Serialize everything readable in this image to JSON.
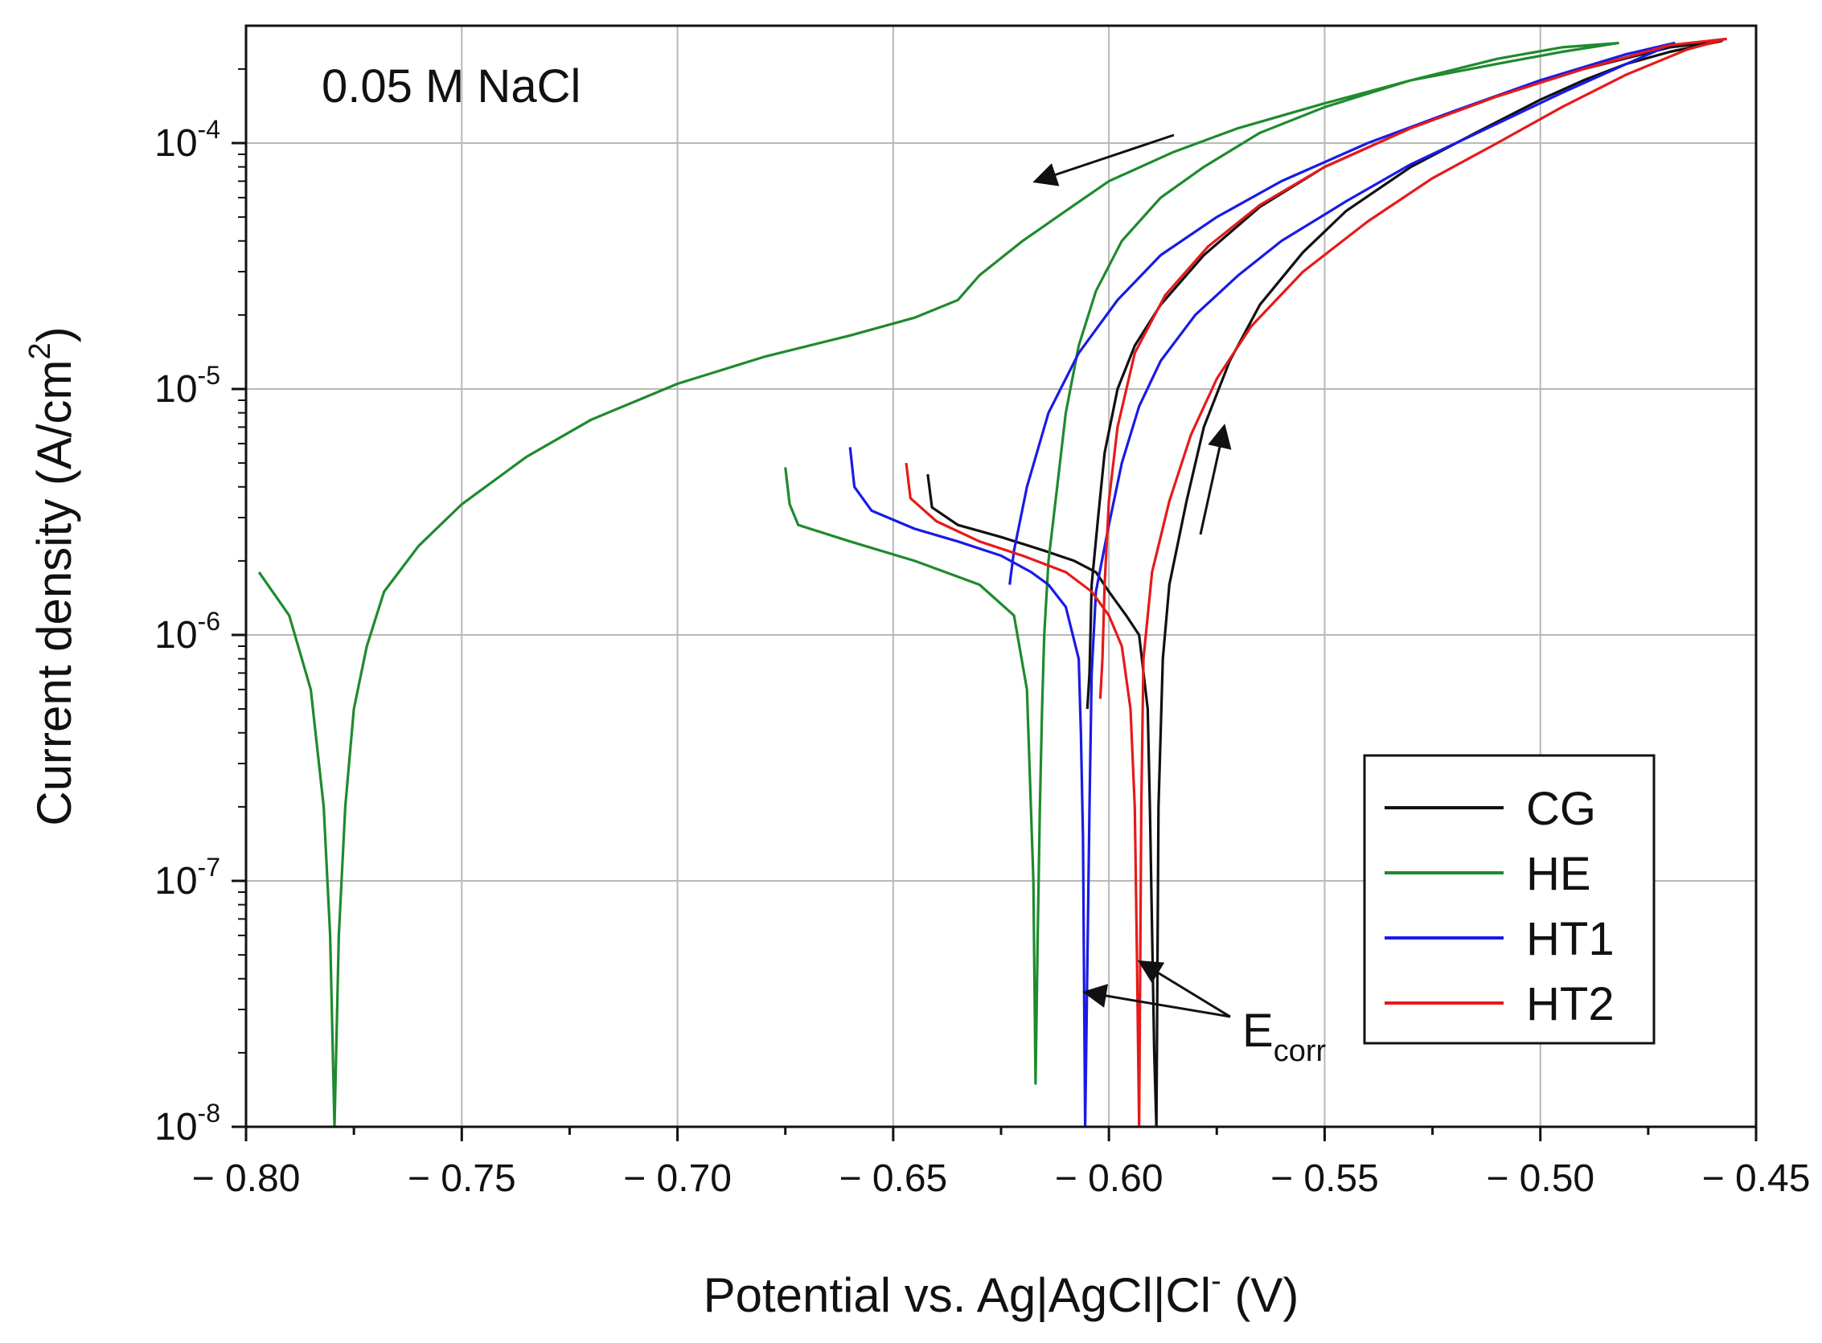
{
  "chart_data": {
    "type": "line",
    "title": "",
    "annotation": "0.05 M NaCl",
    "xlabel": "Potential vs. Ag|AgCl|Cl⁻ (V)",
    "xlabel_main": "Potential vs. Ag|AgCl|Cl",
    "xlabel_sup": "-",
    "xlabel_end": " (V)",
    "ylabel": "Current density (A/cm²)",
    "ylabel_main": "Current density (A/cm",
    "ylabel_sup": "2",
    "ylabel_end": ")",
    "xlim": [
      -0.8,
      -0.45
    ],
    "ylim": [
      1e-08,
      0.0003
    ],
    "yscale": "log",
    "grid": true,
    "legend_position": "bottom-right",
    "xticks": [
      -0.8,
      -0.75,
      -0.7,
      -0.65,
      -0.6,
      -0.55,
      -0.5,
      -0.45
    ],
    "xtick_labels": [
      "− 0.80",
      "− 0.75",
      "− 0.70",
      "− 0.65",
      "− 0.60",
      "− 0.55",
      "− 0.50",
      "− 0.45"
    ],
    "yticks": [
      {
        "value": 0.0001,
        "base": "10",
        "exp": "-4"
      },
      {
        "value": 1e-05,
        "base": "10",
        "exp": "-5"
      },
      {
        "value": 1e-06,
        "base": "10",
        "exp": "-6"
      },
      {
        "value": 1e-07,
        "base": "10",
        "exp": "-7"
      },
      {
        "value": 1e-08,
        "base": "10",
        "exp": "-8"
      }
    ],
    "ecorr_label": {
      "main": "E",
      "sub": "corr"
    },
    "series": [
      {
        "name": "CG",
        "color": "#111111",
        "points": [
          [
            -0.642,
            4.5e-06
          ],
          [
            -0.641,
            3.3e-06
          ],
          [
            -0.635,
            2.8e-06
          ],
          [
            -0.625,
            2.5e-06
          ],
          [
            -0.615,
            2.2e-06
          ],
          [
            -0.608,
            2e-06
          ],
          [
            -0.603,
            1.8e-06
          ],
          [
            -0.6,
            1.5e-06
          ],
          [
            -0.596,
            1.2e-06
          ],
          [
            -0.593,
            1e-06
          ],
          [
            -0.591,
            5e-07
          ],
          [
            -0.5905,
            2e-07
          ],
          [
            -0.5895,
            2e-08
          ],
          [
            -0.589,
            1e-08
          ],
          [
            -0.5885,
            2e-07
          ],
          [
            -0.5875,
            8e-07
          ],
          [
            -0.586,
            1.6e-06
          ],
          [
            -0.582,
            3.5e-06
          ],
          [
            -0.578,
            7e-06
          ],
          [
            -0.572,
            1.3e-05
          ],
          [
            -0.565,
            2.2e-05
          ],
          [
            -0.555,
            3.6e-05
          ],
          [
            -0.545,
            5.3e-05
          ],
          [
            -0.53,
            8e-05
          ],
          [
            -0.515,
            0.00011
          ],
          [
            -0.5,
            0.00015
          ],
          [
            -0.49,
            0.00018
          ],
          [
            -0.48,
            0.00021
          ],
          [
            -0.47,
            0.000235
          ],
          [
            -0.458,
            0.00026
          ],
          [
            -0.47,
            0.000245
          ],
          [
            -0.49,
            0.0002
          ],
          [
            -0.51,
            0.000155
          ],
          [
            -0.53,
            0.000115
          ],
          [
            -0.55,
            8e-05
          ],
          [
            -0.565,
            5.5e-05
          ],
          [
            -0.578,
            3.5e-05
          ],
          [
            -0.588,
            2.2e-05
          ],
          [
            -0.594,
            1.5e-05
          ],
          [
            -0.598,
            1e-05
          ],
          [
            -0.601,
            5.5e-06
          ],
          [
            -0.6025,
            3e-06
          ],
          [
            -0.604,
            1.6e-06
          ],
          [
            -0.6045,
            7e-07
          ],
          [
            -0.605,
            5e-07
          ]
        ]
      },
      {
        "name": "HE",
        "color": "#1f8a2e",
        "points": [
          [
            -0.797,
            1.8e-06
          ],
          [
            -0.79,
            1.2e-06
          ],
          [
            -0.785,
            6e-07
          ],
          [
            -0.782,
            2e-07
          ],
          [
            -0.7805,
            6e-08
          ],
          [
            -0.7795,
            1e-08
          ],
          [
            -0.7785,
            6e-08
          ],
          [
            -0.777,
            2e-07
          ],
          [
            -0.775,
            5e-07
          ],
          [
            -0.772,
            9e-07
          ],
          [
            -0.768,
            1.5e-06
          ],
          [
            -0.76,
            2.3e-06
          ],
          [
            -0.75,
            3.4e-06
          ],
          [
            -0.735,
            5.3e-06
          ],
          [
            -0.72,
            7.5e-06
          ],
          [
            -0.7,
            1.05e-05
          ],
          [
            -0.68,
            1.35e-05
          ],
          [
            -0.66,
            1.65e-05
          ],
          [
            -0.645,
            1.95e-05
          ],
          [
            -0.635,
            2.3e-05
          ],
          [
            -0.63,
            2.9e-05
          ],
          [
            -0.62,
            4e-05
          ],
          [
            -0.61,
            5.3e-05
          ],
          [
            -0.6,
            7e-05
          ],
          [
            -0.585,
            9.2e-05
          ],
          [
            -0.57,
            0.000115
          ],
          [
            -0.55,
            0.000145
          ],
          [
            -0.53,
            0.00018
          ],
          [
            -0.51,
            0.00021
          ],
          [
            -0.495,
            0.000235
          ],
          [
            -0.482,
            0.000255
          ],
          [
            -0.495,
            0.000245
          ],
          [
            -0.51,
            0.00022
          ],
          [
            -0.53,
            0.00018
          ],
          [
            -0.55,
            0.00014
          ],
          [
            -0.565,
            0.00011
          ],
          [
            -0.578,
            8e-05
          ],
          [
            -0.588,
            6e-05
          ],
          [
            -0.597,
            4e-05
          ],
          [
            -0.603,
            2.5e-05
          ],
          [
            -0.607,
            1.5e-05
          ],
          [
            -0.61,
            8e-06
          ],
          [
            -0.612,
            4e-06
          ],
          [
            -0.614,
            2e-06
          ],
          [
            -0.615,
            1e-06
          ],
          [
            -0.6155,
            5e-07
          ],
          [
            -0.616,
            2e-07
          ],
          [
            -0.6165,
            6e-08
          ],
          [
            -0.617,
            1.5e-08
          ],
          [
            -0.6175,
            1e-07
          ],
          [
            -0.619,
            6e-07
          ],
          [
            -0.622,
            1.2e-06
          ],
          [
            -0.63,
            1.6e-06
          ],
          [
            -0.645,
            2e-06
          ],
          [
            -0.66,
            2.4e-06
          ],
          [
            -0.672,
            2.8e-06
          ],
          [
            -0.674,
            3.4e-06
          ],
          [
            -0.675,
            4.8e-06
          ]
        ]
      },
      {
        "name": "HT1",
        "color": "#1a1ae6",
        "points": [
          [
            -0.66,
            5.8e-06
          ],
          [
            -0.659,
            4e-06
          ],
          [
            -0.655,
            3.2e-06
          ],
          [
            -0.645,
            2.7e-06
          ],
          [
            -0.635,
            2.4e-06
          ],
          [
            -0.625,
            2.1e-06
          ],
          [
            -0.618,
            1.8e-06
          ],
          [
            -0.614,
            1.6e-06
          ],
          [
            -0.61,
            1.3e-06
          ],
          [
            -0.607,
            8e-07
          ],
          [
            -0.6065,
            4e-07
          ],
          [
            -0.606,
            1.5e-07
          ],
          [
            -0.6055,
            1e-08
          ],
          [
            -0.6045,
            2e-07
          ],
          [
            -0.604,
            7e-07
          ],
          [
            -0.603,
            1.5e-06
          ],
          [
            -0.6,
            2.8e-06
          ],
          [
            -0.597,
            5e-06
          ],
          [
            -0.593,
            8.5e-06
          ],
          [
            -0.588,
            1.3e-05
          ],
          [
            -0.58,
            2e-05
          ],
          [
            -0.57,
            2.9e-05
          ],
          [
            -0.56,
            4e-05
          ],
          [
            -0.545,
            5.8e-05
          ],
          [
            -0.53,
            8.2e-05
          ],
          [
            -0.51,
            0.00012
          ],
          [
            -0.495,
            0.00016
          ],
          [
            -0.48,
            0.00021
          ],
          [
            -0.469,
            0.000255
          ],
          [
            -0.48,
            0.00023
          ],
          [
            -0.5,
            0.00018
          ],
          [
            -0.52,
            0.000135
          ],
          [
            -0.54,
            0.0001
          ],
          [
            -0.56,
            7e-05
          ],
          [
            -0.575,
            5e-05
          ],
          [
            -0.588,
            3.5e-05
          ],
          [
            -0.598,
            2.3e-05
          ],
          [
            -0.607,
            1.4e-05
          ],
          [
            -0.614,
            8e-06
          ],
          [
            -0.619,
            4e-06
          ],
          [
            -0.622,
            2.2e-06
          ],
          [
            -0.623,
            1.6e-06
          ]
        ]
      },
      {
        "name": "HT2",
        "color": "#e61a1a",
        "points": [
          [
            -0.647,
            5e-06
          ],
          [
            -0.646,
            3.6e-06
          ],
          [
            -0.64,
            2.9e-06
          ],
          [
            -0.63,
            2.4e-06
          ],
          [
            -0.62,
            2.1e-06
          ],
          [
            -0.61,
            1.8e-06
          ],
          [
            -0.604,
            1.5e-06
          ],
          [
            -0.6,
            1.2e-06
          ],
          [
            -0.597,
            9e-07
          ],
          [
            -0.595,
            5e-07
          ],
          [
            -0.594,
            2e-07
          ],
          [
            -0.5935,
            5e-08
          ],
          [
            -0.593,
            1e-08
          ],
          [
            -0.5925,
            2e-07
          ],
          [
            -0.592,
            8e-07
          ],
          [
            -0.59,
            1.8e-06
          ],
          [
            -0.586,
            3.5e-06
          ],
          [
            -0.581,
            6.5e-06
          ],
          [
            -0.575,
            1.1e-05
          ],
          [
            -0.567,
            1.8e-05
          ],
          [
            -0.555,
            3e-05
          ],
          [
            -0.54,
            4.8e-05
          ],
          [
            -0.525,
            7.2e-05
          ],
          [
            -0.51,
            0.0001
          ],
          [
            -0.495,
            0.00014
          ],
          [
            -0.48,
            0.00019
          ],
          [
            -0.466,
            0.00024
          ],
          [
            -0.457,
            0.000265
          ],
          [
            -0.47,
            0.00025
          ],
          [
            -0.49,
            0.0002
          ],
          [
            -0.51,
            0.000155
          ],
          [
            -0.53,
            0.000115
          ],
          [
            -0.55,
            8e-05
          ],
          [
            -0.565,
            5.6e-05
          ],
          [
            -0.577,
            3.8e-05
          ],
          [
            -0.587,
            2.4e-05
          ],
          [
            -0.594,
            1.4e-05
          ],
          [
            -0.598,
            7e-06
          ],
          [
            -0.6,
            3.5e-06
          ],
          [
            -0.601,
            1.6e-06
          ],
          [
            -0.6015,
            8e-07
          ],
          [
            -0.602,
            5.5e-07
          ]
        ]
      }
    ]
  }
}
